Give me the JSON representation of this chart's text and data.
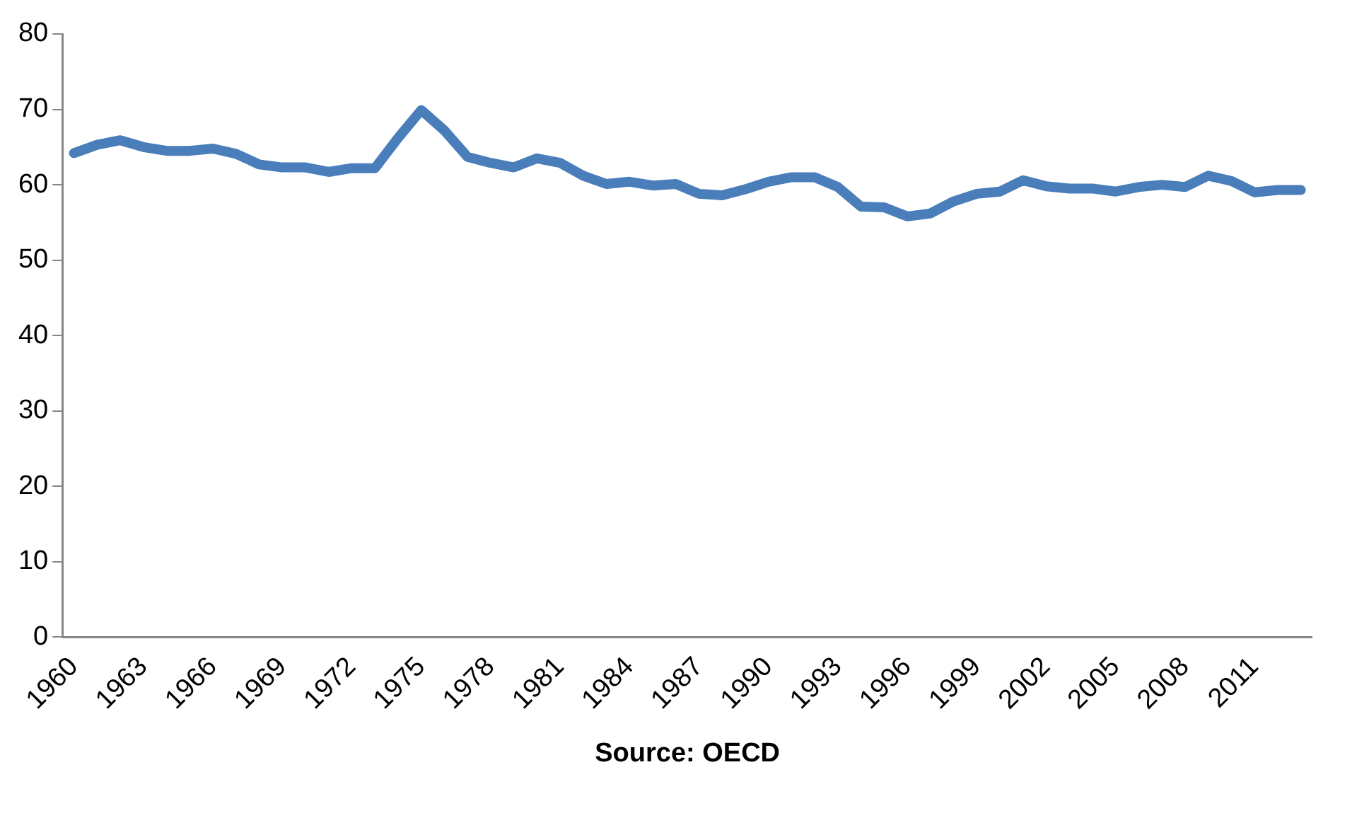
{
  "chart_data": {
    "type": "line",
    "xlabel": "Source: OECD",
    "categories": [
      "1960",
      null,
      null,
      "1963",
      null,
      null,
      "1966",
      null,
      null,
      "1969",
      null,
      null,
      "1972",
      null,
      null,
      "1975",
      null,
      null,
      "1978",
      null,
      null,
      "1981",
      null,
      null,
      "1984",
      null,
      null,
      "1987",
      null,
      null,
      "1990",
      null,
      null,
      "1993",
      null,
      null,
      "1996",
      null,
      null,
      "1999",
      null,
      null,
      "2002",
      null,
      null,
      "2005",
      null,
      null,
      "2008",
      null,
      null,
      "2011",
      null,
      null
    ],
    "series": [
      {
        "color": "#4a7ebb",
        "values": [
          64.2,
          65.3,
          65.9,
          65.0,
          64.5,
          64.5,
          64.8,
          64.1,
          62.7,
          62.3,
          62.3,
          61.7,
          62.2,
          62.2,
          66.2,
          69.9,
          67.2,
          63.7,
          62.9,
          62.3,
          63.5,
          62.9,
          61.2,
          60.1,
          60.4,
          59.9,
          60.1,
          58.8,
          58.6,
          59.4,
          60.4,
          61.0,
          61.0,
          59.7,
          57.1,
          57.0,
          55.8,
          56.2,
          57.8,
          58.8,
          59.1,
          60.6,
          59.8,
          59.5,
          59.5,
          59.1,
          59.7,
          60.0,
          59.7,
          61.2,
          60.5,
          59.0,
          59.3,
          59.3
        ]
      }
    ],
    "ylim": [
      0,
      80
    ],
    "yticks": [
      0,
      10,
      20,
      30,
      40,
      50,
      60,
      70,
      80
    ],
    "grid": false,
    "legend": false,
    "marker": "none",
    "line_style": "solid"
  }
}
